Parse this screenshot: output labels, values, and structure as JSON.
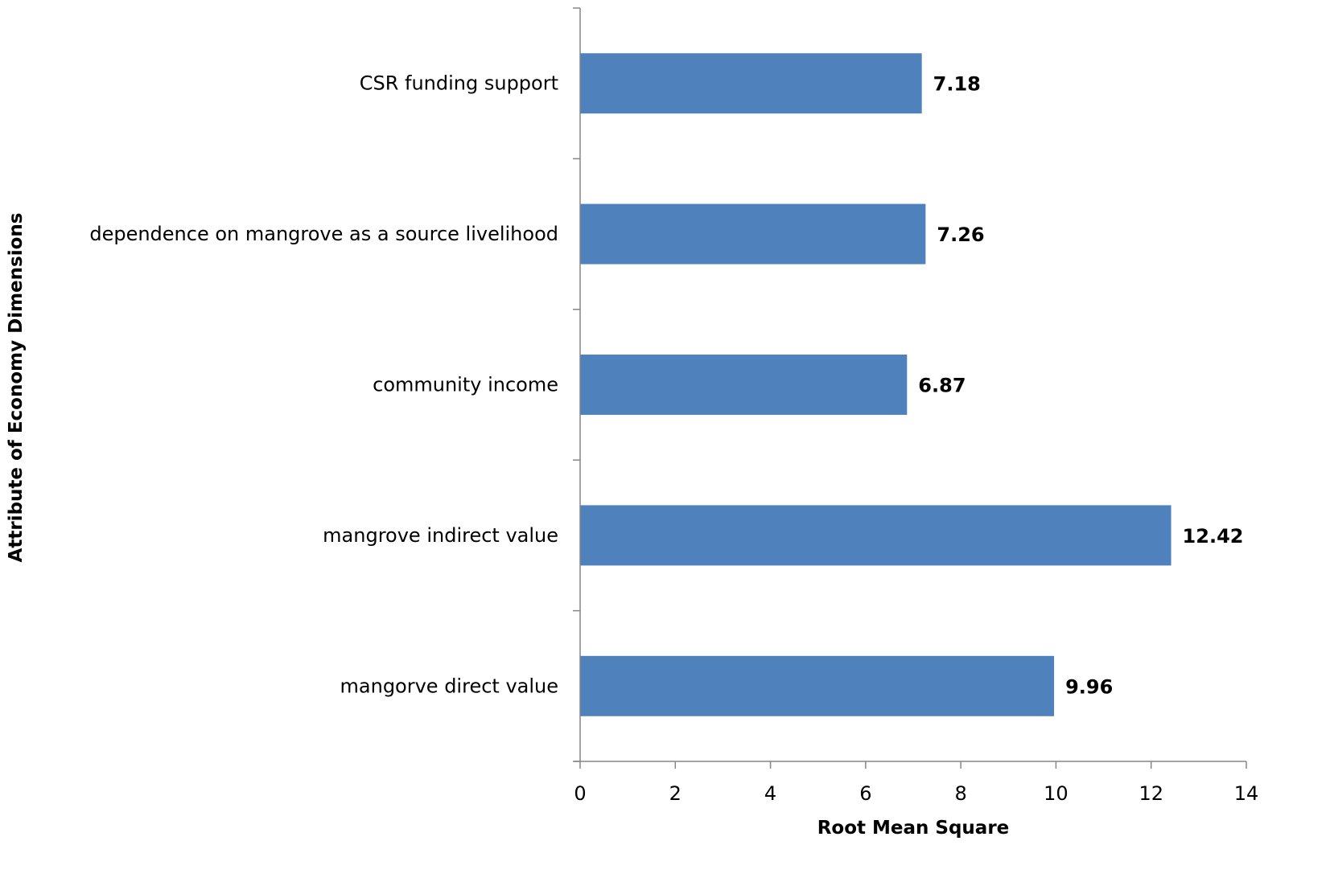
{
  "chart_data": {
    "type": "bar",
    "orientation": "horizontal",
    "title": "",
    "xlabel": "Root Mean Square",
    "ylabel": "Attribute of Economy Dimensions",
    "categories": [
      "CSR funding support",
      "dependence on mangrove  as a source livelihood",
      "community income",
      "mangrove indirect value",
      "mangorve direct value"
    ],
    "values": [
      7.18,
      7.26,
      6.87,
      12.42,
      9.96
    ],
    "value_labels": [
      "7.18",
      "7.26",
      "6.87",
      "12.42",
      "9.96"
    ],
    "xlim": [
      0,
      14
    ],
    "xticks": [
      0,
      2,
      4,
      6,
      8,
      10,
      12,
      14
    ],
    "xtick_labels": [
      "0",
      "2",
      "4",
      "6",
      "8",
      "10",
      "12",
      "14"
    ],
    "grid": false,
    "legend": "none",
    "bar_color": "#4F81BD"
  }
}
